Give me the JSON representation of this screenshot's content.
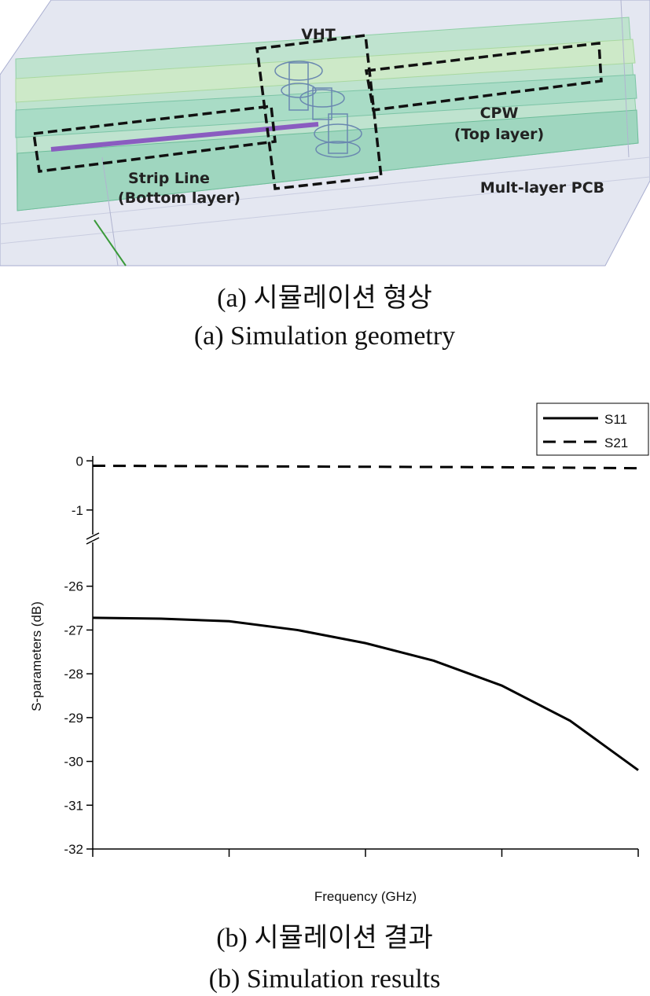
{
  "figure_a": {
    "labels": {
      "vht": "VHT",
      "cpw": "CPW",
      "cpw_layer": "(Top layer)",
      "strip": "Strip Line",
      "strip_layer": "(Bottom layer)",
      "pcb": "Mult-layer PCB"
    },
    "caption_ko": "(a) 시뮬레이션 형상",
    "caption_en": "(a) Simulation geometry"
  },
  "chart_data": [
    {
      "type": "line",
      "legend": "top-right",
      "x": [
        0,
        1,
        2,
        3,
        4
      ],
      "xlim": [
        0,
        4
      ],
      "ylim": [
        -1.5,
        0.1
      ],
      "yticks": [
        0,
        -1
      ],
      "series": [
        {
          "name": "S21",
          "color": "#000000",
          "linestyle": "dashed",
          "values": [
            -0.1,
            -0.11,
            -0.12,
            -0.13,
            -0.15
          ]
        }
      ]
    },
    {
      "type": "line",
      "xlabel": "Frequency (GHz)",
      "ylabel": "S-parameters (dB)",
      "x": [
        0,
        0.5,
        1,
        1.5,
        2,
        2.5,
        3,
        3.5,
        4
      ],
      "xlim": [
        0,
        4
      ],
      "xticks": [
        0,
        1,
        2,
        3,
        4
      ],
      "ylim": [
        -32,
        -25
      ],
      "yticks": [
        -26,
        -27,
        -28,
        -29,
        -30,
        -31,
        -32
      ],
      "series": [
        {
          "name": "S11",
          "color": "#000000",
          "linestyle": "solid",
          "values": [
            -26.72,
            -26.74,
            -26.8,
            -27.0,
            -27.3,
            -27.7,
            -28.27,
            -29.07,
            -30.2
          ]
        }
      ]
    }
  ],
  "figure_b": {
    "caption_ko": "(b) 시뮬레이션 결과",
    "caption_en": "(b) Simulation results"
  }
}
